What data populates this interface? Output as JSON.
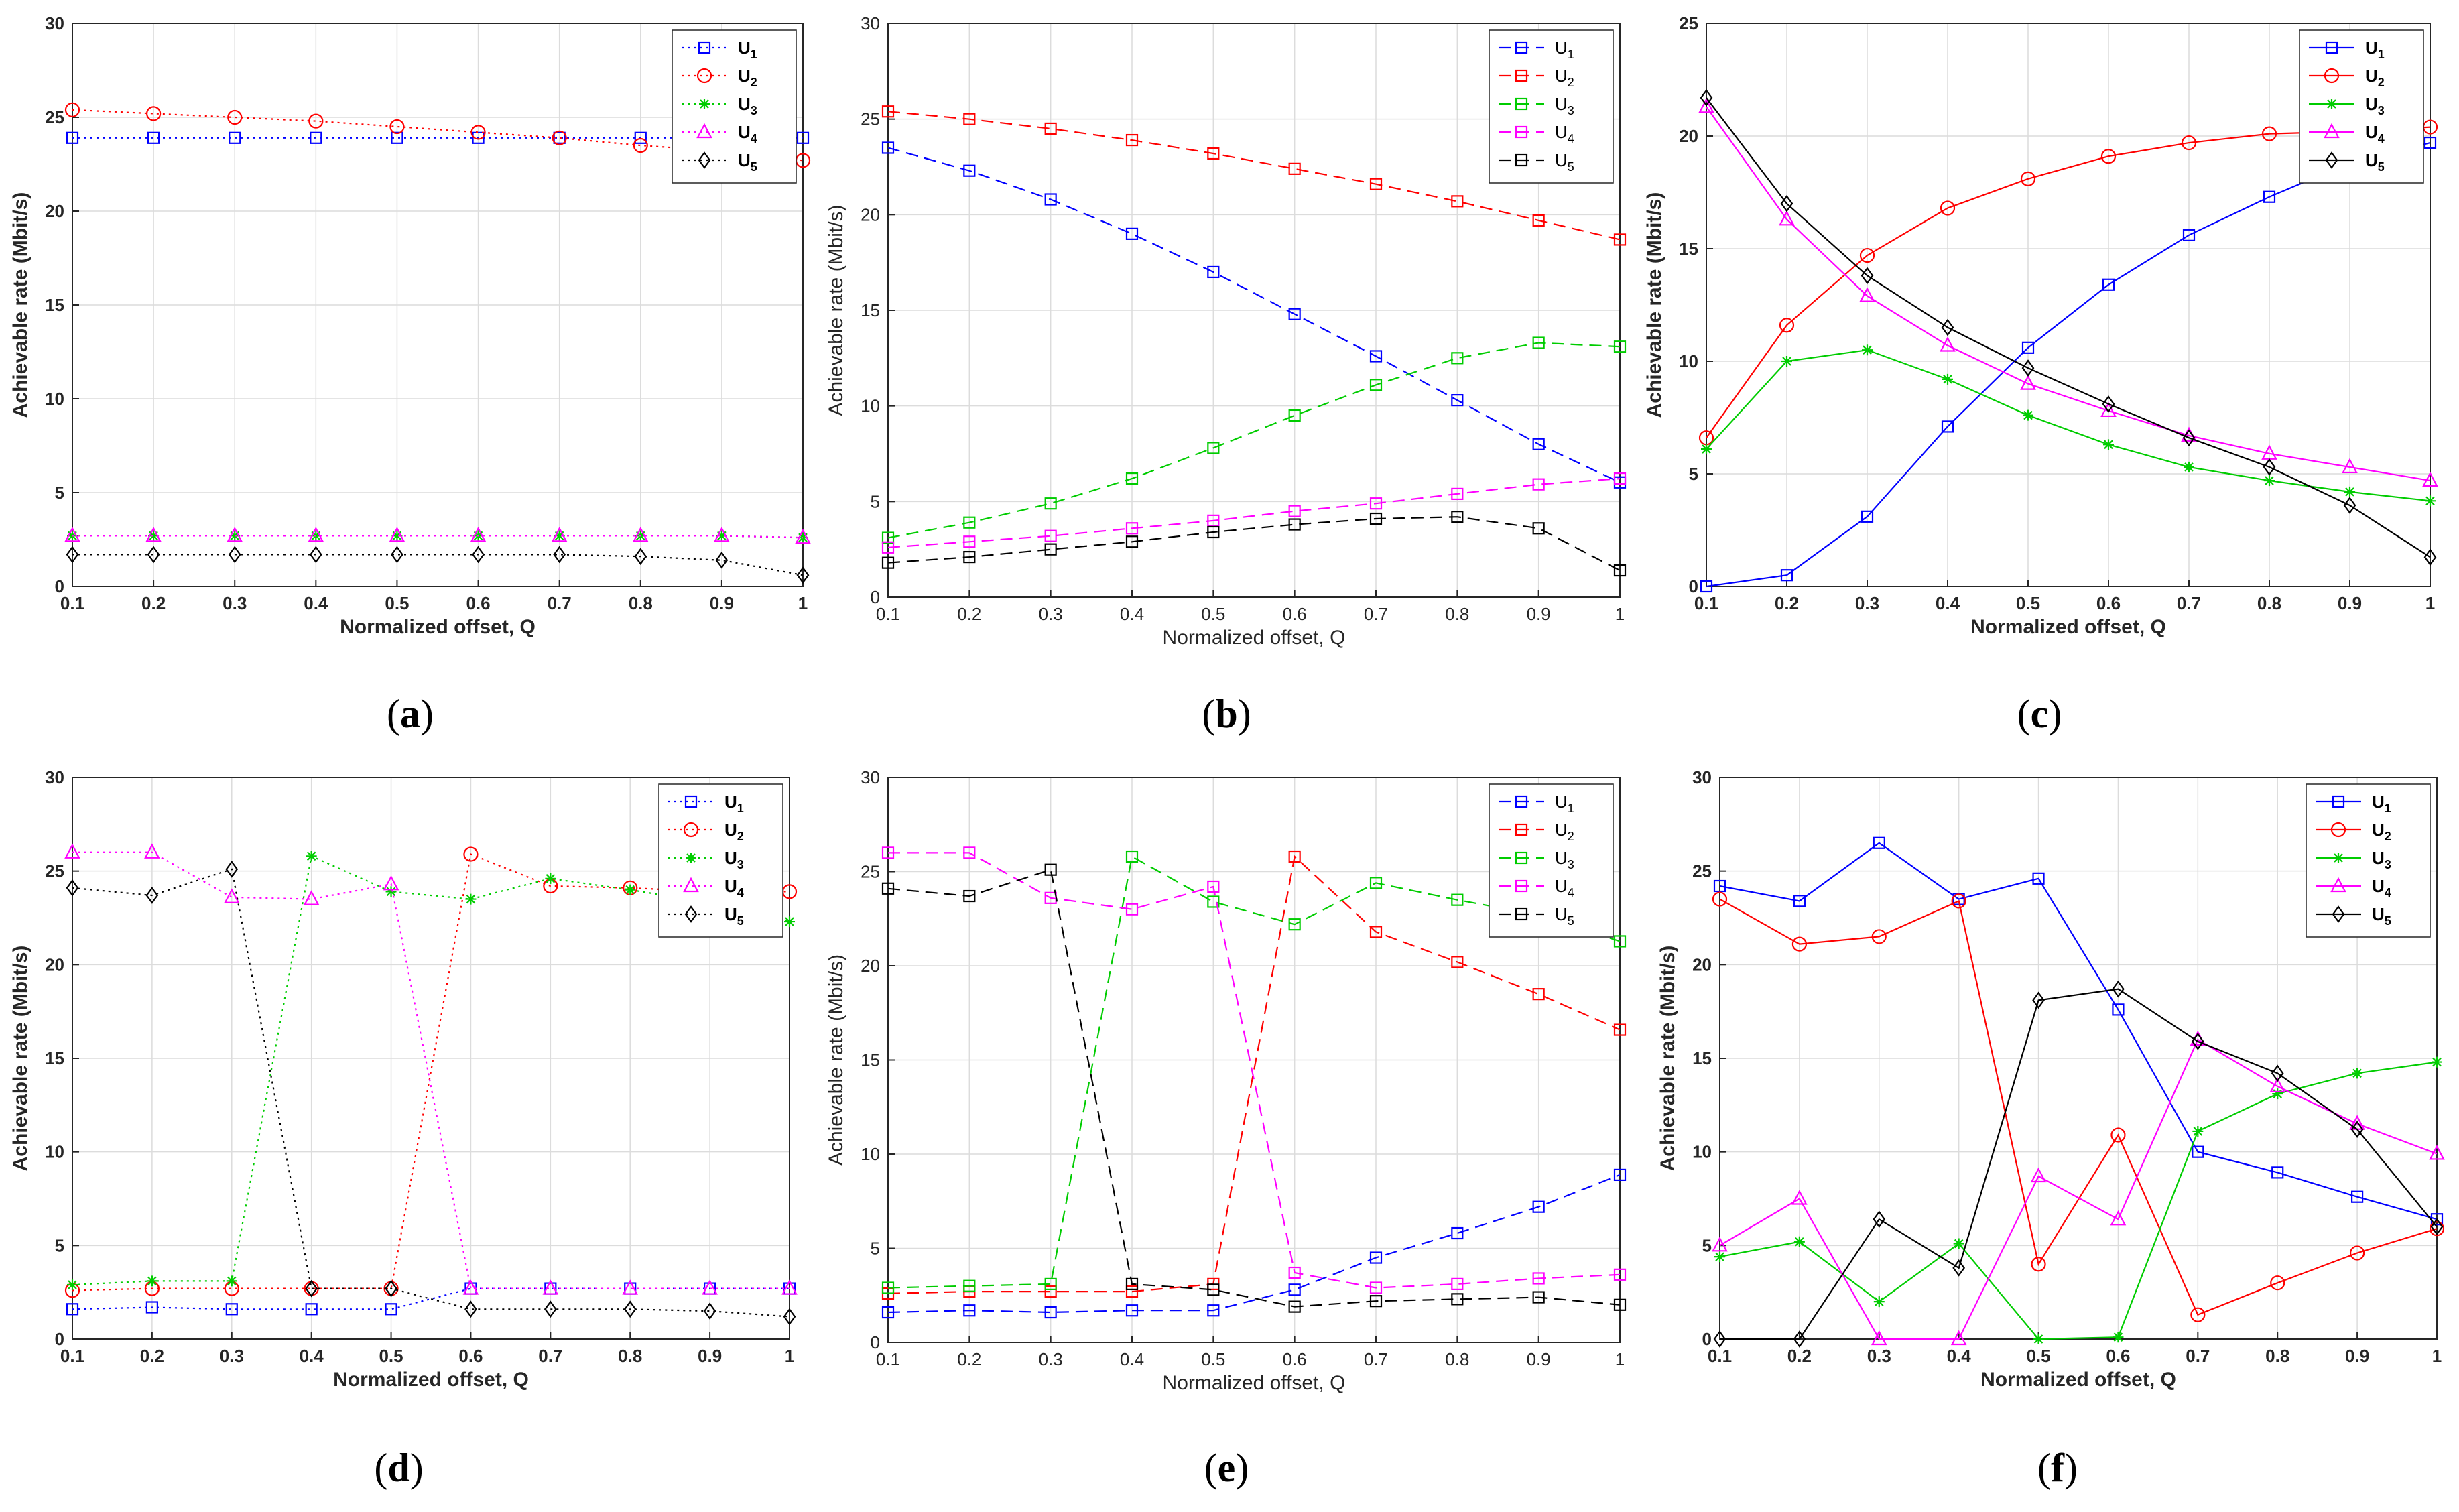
{
  "chart_data": [
    {
      "panel": "(a)",
      "type": "line",
      "line_style": "dotted",
      "x": [
        0.1,
        0.2,
        0.3,
        0.4,
        0.5,
        0.6,
        0.7,
        0.8,
        0.9,
        1
      ],
      "xlabel": "Normalized offset, Q",
      "ylabel": "Achievable rate (Mbit/s)",
      "xlim": [
        0.1,
        1
      ],
      "ylim": [
        0,
        30
      ],
      "yticks": [
        0,
        5,
        10,
        15,
        20,
        25,
        30
      ],
      "grid": true,
      "legend": "top-right",
      "series": [
        {
          "name": "U",
          "sub": "1",
          "color": "#0000ff",
          "marker": "square",
          "values": [
            23.9,
            23.9,
            23.9,
            23.9,
            23.9,
            23.9,
            23.9,
            23.9,
            23.9,
            23.9
          ]
        },
        {
          "name": "U",
          "sub": "2",
          "color": "#ff0000",
          "marker": "circle",
          "values": [
            25.4,
            25.2,
            25.0,
            24.8,
            24.5,
            24.2,
            23.9,
            23.5,
            23.2,
            22.7
          ]
        },
        {
          "name": "U",
          "sub": "3",
          "color": "#00cc00",
          "marker": "asterisk",
          "values": [
            2.7,
            2.7,
            2.7,
            2.7,
            2.7,
            2.7,
            2.7,
            2.7,
            2.7,
            2.6
          ]
        },
        {
          "name": "U",
          "sub": "4",
          "color": "#ff00ff",
          "marker": "triangle",
          "values": [
            2.7,
            2.7,
            2.7,
            2.7,
            2.7,
            2.7,
            2.7,
            2.7,
            2.7,
            2.6
          ]
        },
        {
          "name": "U",
          "sub": "5",
          "color": "#000000",
          "marker": "diamond",
          "values": [
            1.7,
            1.7,
            1.7,
            1.7,
            1.7,
            1.7,
            1.7,
            1.6,
            1.4,
            0.6
          ]
        }
      ]
    },
    {
      "panel": "(b)",
      "type": "line",
      "line_style": "dashed",
      "x": [
        0.1,
        0.2,
        0.3,
        0.4,
        0.5,
        0.6,
        0.7,
        0.8,
        0.9,
        1
      ],
      "xlabel": "Normalized offset, Q",
      "ylabel": "Achievable rate (Mbit/s)",
      "xlim": [
        0.1,
        1
      ],
      "ylim": [
        0,
        30
      ],
      "yticks": [
        0,
        5,
        10,
        15,
        20,
        25,
        30
      ],
      "grid": true,
      "legend": "top-right",
      "series": [
        {
          "name": "U",
          "sub": "1",
          "color": "#0000ff",
          "marker": "square",
          "values": [
            23.5,
            22.3,
            20.8,
            19.0,
            17.0,
            14.8,
            12.6,
            10.3,
            8.0,
            6.0
          ]
        },
        {
          "name": "U",
          "sub": "2",
          "color": "#ff0000",
          "marker": "square",
          "values": [
            25.4,
            25.0,
            24.5,
            23.9,
            23.2,
            22.4,
            21.6,
            20.7,
            19.7,
            18.7
          ]
        },
        {
          "name": "U",
          "sub": "3",
          "color": "#00cc00",
          "marker": "square",
          "values": [
            3.1,
            3.9,
            4.9,
            6.2,
            7.8,
            9.5,
            11.1,
            12.5,
            13.3,
            13.1
          ]
        },
        {
          "name": "U",
          "sub": "4",
          "color": "#ff00ff",
          "marker": "square",
          "values": [
            2.6,
            2.9,
            3.2,
            3.6,
            4.0,
            4.5,
            4.9,
            5.4,
            5.9,
            6.2
          ]
        },
        {
          "name": "U",
          "sub": "5",
          "color": "#000000",
          "marker": "square",
          "values": [
            1.8,
            2.1,
            2.5,
            2.9,
            3.4,
            3.8,
            4.1,
            4.2,
            3.6,
            1.4
          ]
        }
      ]
    },
    {
      "panel": "(c)",
      "type": "line",
      "line_style": "solid",
      "x": [
        0.1,
        0.2,
        0.3,
        0.4,
        0.5,
        0.6,
        0.7,
        0.8,
        0.9,
        1
      ],
      "xlabel": "Normalized offset, Q",
      "ylabel": "Achievable rate (Mbit/s)",
      "xlim": [
        0.1,
        1
      ],
      "ylim": [
        0,
        25
      ],
      "yticks": [
        0,
        5,
        10,
        15,
        20,
        25
      ],
      "grid": true,
      "legend": "top-right",
      "series": [
        {
          "name": "U",
          "sub": "1",
          "color": "#0000ff",
          "marker": "square",
          "values": [
            0.0,
            0.5,
            3.1,
            7.1,
            10.6,
            13.4,
            15.6,
            17.3,
            18.8,
            19.7
          ]
        },
        {
          "name": "U",
          "sub": "2",
          "color": "#ff0000",
          "marker": "circle",
          "values": [
            6.6,
            11.6,
            14.7,
            16.8,
            18.1,
            19.1,
            19.7,
            20.1,
            20.2,
            20.4
          ]
        },
        {
          "name": "U",
          "sub": "3",
          "color": "#00cc00",
          "marker": "asterisk",
          "values": [
            6.1,
            10.0,
            10.5,
            9.2,
            7.6,
            6.3,
            5.3,
            4.7,
            4.2,
            3.8
          ]
        },
        {
          "name": "U",
          "sub": "4",
          "color": "#ff00ff",
          "marker": "triangle",
          "values": [
            21.3,
            16.3,
            12.9,
            10.7,
            9.0,
            7.8,
            6.7,
            5.9,
            5.3,
            4.7
          ]
        },
        {
          "name": "U",
          "sub": "5",
          "color": "#000000",
          "marker": "diamond",
          "values": [
            21.7,
            17.0,
            13.8,
            11.5,
            9.7,
            8.1,
            6.6,
            5.3,
            3.6,
            1.3
          ]
        }
      ]
    },
    {
      "panel": "(d)",
      "type": "line",
      "line_style": "dotted",
      "x": [
        0.1,
        0.2,
        0.3,
        0.4,
        0.5,
        0.6,
        0.7,
        0.8,
        0.9,
        1
      ],
      "xlabel": "Normalized offset, Q",
      "ylabel": "Achievable rate (Mbit/s)",
      "xlim": [
        0.1,
        1
      ],
      "ylim": [
        0,
        30
      ],
      "yticks": [
        0,
        5,
        10,
        15,
        20,
        25,
        30
      ],
      "grid": true,
      "legend": "top-right",
      "series": [
        {
          "name": "U",
          "sub": "1",
          "color": "#0000ff",
          "marker": "square",
          "values": [
            1.6,
            1.7,
            1.6,
            1.6,
            1.6,
            2.7,
            2.7,
            2.7,
            2.7,
            2.7
          ]
        },
        {
          "name": "U",
          "sub": "2",
          "color": "#ff0000",
          "marker": "circle",
          "values": [
            2.6,
            2.7,
            2.7,
            2.7,
            2.7,
            25.9,
            24.2,
            24.1,
            23.9,
            23.9
          ]
        },
        {
          "name": "U",
          "sub": "3",
          "color": "#00cc00",
          "marker": "asterisk",
          "values": [
            2.9,
            3.1,
            3.1,
            25.8,
            23.9,
            23.5,
            24.6,
            24.0,
            23.3,
            22.3
          ]
        },
        {
          "name": "U",
          "sub": "4",
          "color": "#ff00ff",
          "marker": "triangle",
          "values": [
            26.0,
            26.0,
            23.6,
            23.5,
            24.3,
            2.7,
            2.7,
            2.7,
            2.7,
            2.7
          ]
        },
        {
          "name": "U",
          "sub": "5",
          "color": "#000000",
          "marker": "diamond",
          "values": [
            24.1,
            23.7,
            25.1,
            2.7,
            2.7,
            1.6,
            1.6,
            1.6,
            1.5,
            1.2
          ]
        }
      ]
    },
    {
      "panel": "(e)",
      "type": "line",
      "line_style": "dashed",
      "x": [
        0.1,
        0.2,
        0.3,
        0.4,
        0.5,
        0.6,
        0.7,
        0.8,
        0.9,
        1
      ],
      "xlabel": "Normalized offset, Q",
      "ylabel": "Achievable rate (Mbit/s)",
      "xlim": [
        0.1,
        1
      ],
      "ylim": [
        0,
        30
      ],
      "yticks": [
        0,
        5,
        10,
        15,
        20,
        25,
        30
      ],
      "grid": true,
      "legend": "top-right",
      "series": [
        {
          "name": "U",
          "sub": "1",
          "color": "#0000ff",
          "marker": "square",
          "values": [
            1.6,
            1.7,
            1.6,
            1.7,
            1.7,
            2.8,
            4.5,
            5.8,
            7.2,
            8.9
          ]
        },
        {
          "name": "U",
          "sub": "2",
          "color": "#ff0000",
          "marker": "square",
          "values": [
            2.6,
            2.7,
            2.7,
            2.7,
            3.1,
            25.8,
            21.8,
            20.2,
            18.5,
            16.6
          ]
        },
        {
          "name": "U",
          "sub": "3",
          "color": "#00cc00",
          "marker": "square",
          "values": [
            2.9,
            3.0,
            3.1,
            25.8,
            23.4,
            22.2,
            24.4,
            23.5,
            22.7,
            21.3
          ]
        },
        {
          "name": "U",
          "sub": "4",
          "color": "#ff00ff",
          "marker": "square",
          "values": [
            26.0,
            26.0,
            23.6,
            23.0,
            24.2,
            3.7,
            2.9,
            3.1,
            3.4,
            3.6
          ]
        },
        {
          "name": "U",
          "sub": "5",
          "color": "#000000",
          "marker": "square",
          "values": [
            24.1,
            23.7,
            25.1,
            3.1,
            2.8,
            1.9,
            2.2,
            2.3,
            2.4,
            2.0
          ]
        }
      ]
    },
    {
      "panel": "(f)",
      "type": "line",
      "line_style": "solid",
      "x": [
        0.1,
        0.2,
        0.3,
        0.4,
        0.5,
        0.6,
        0.7,
        0.8,
        0.9,
        1
      ],
      "xlabel": "Normalized offset, Q",
      "ylabel": "Achievable rate (Mbit/s)",
      "xlim": [
        0.1,
        1
      ],
      "ylim": [
        0,
        30
      ],
      "yticks": [
        0,
        5,
        10,
        15,
        20,
        25,
        30
      ],
      "grid": true,
      "legend": "top-right",
      "series": [
        {
          "name": "U",
          "sub": "1",
          "color": "#0000ff",
          "marker": "square",
          "values": [
            24.2,
            23.4,
            26.5,
            23.5,
            24.6,
            17.6,
            10.0,
            8.9,
            7.6,
            6.4
          ]
        },
        {
          "name": "U",
          "sub": "2",
          "color": "#ff0000",
          "marker": "circle",
          "values": [
            23.5,
            21.1,
            21.5,
            23.4,
            4.0,
            10.9,
            1.3,
            3.0,
            4.6,
            5.9
          ]
        },
        {
          "name": "U",
          "sub": "3",
          "color": "#00cc00",
          "marker": "asterisk",
          "values": [
            4.4,
            5.2,
            2.0,
            5.1,
            0.0,
            0.1,
            11.1,
            13.1,
            14.2,
            14.8
          ]
        },
        {
          "name": "U",
          "sub": "4",
          "color": "#ff00ff",
          "marker": "triangle",
          "values": [
            5.0,
            7.5,
            0.0,
            0.0,
            8.7,
            6.4,
            16.0,
            13.5,
            11.5,
            9.9
          ]
        },
        {
          "name": "U",
          "sub": "5",
          "color": "#000000",
          "marker": "diamond",
          "values": [
            0.0,
            0.0,
            6.4,
            3.8,
            18.1,
            18.7,
            15.9,
            14.2,
            11.2,
            6.0
          ]
        }
      ]
    }
  ]
}
